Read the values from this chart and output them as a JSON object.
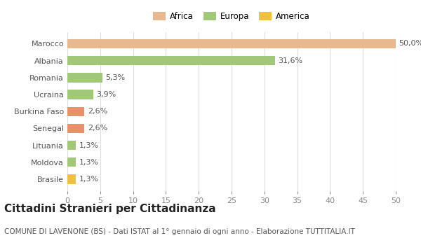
{
  "categories": [
    "Brasile",
    "Moldova",
    "Lituania",
    "Senegal",
    "Burkina Faso",
    "Ucraina",
    "Romania",
    "Albania",
    "Marocco"
  ],
  "values": [
    1.3,
    1.3,
    1.3,
    2.6,
    2.6,
    3.9,
    5.3,
    31.6,
    50.0
  ],
  "labels": [
    "1,3%",
    "1,3%",
    "1,3%",
    "2,6%",
    "2,6%",
    "3,9%",
    "5,3%",
    "31,6%",
    "50,0%"
  ],
  "colors": [
    "#f0c040",
    "#a0c878",
    "#a0c878",
    "#e8906a",
    "#e8906a",
    "#a0c878",
    "#a0c878",
    "#a0c878",
    "#e8b990"
  ],
  "legend": [
    {
      "label": "Africa",
      "color": "#e8b990"
    },
    {
      "label": "Europa",
      "color": "#a0c878"
    },
    {
      "label": "America",
      "color": "#f0c040"
    }
  ],
  "xlim": [
    0,
    50
  ],
  "xticks": [
    0,
    5,
    10,
    15,
    20,
    25,
    30,
    35,
    40,
    45,
    50
  ],
  "title": "Cittadini Stranieri per Cittadinanza",
  "subtitle": "COMUNE DI LAVENONE (BS) - Dati ISTAT al 1° gennaio di ogni anno - Elaborazione TUTTITALIA.IT",
  "bg_color": "#ffffff",
  "grid_color": "#dddddd",
  "bar_height": 0.55,
  "label_fontsize": 8,
  "tick_fontsize": 8,
  "title_fontsize": 11,
  "subtitle_fontsize": 7.5
}
